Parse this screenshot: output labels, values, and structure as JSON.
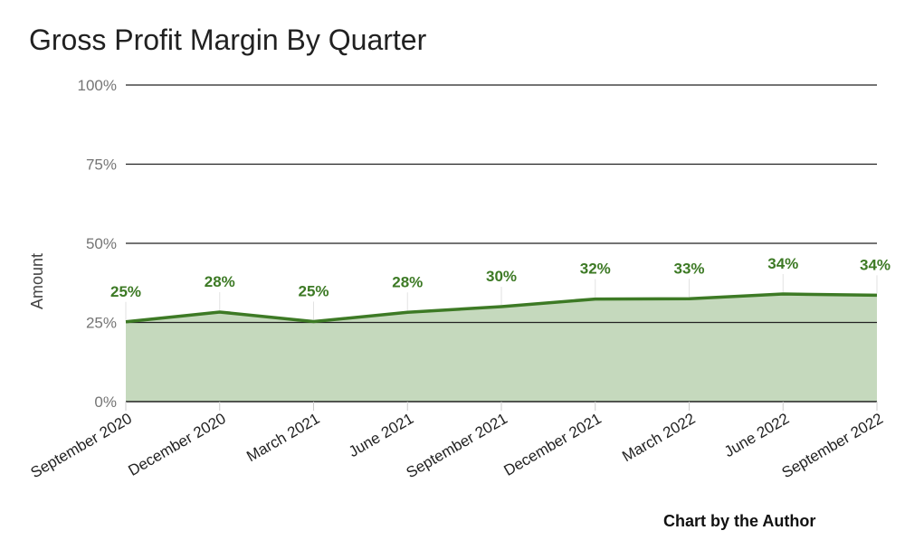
{
  "chart_data": {
    "type": "area",
    "title": "Gross Profit Margin By Quarter",
    "xlabel": "",
    "ylabel": "Amount",
    "ylim": [
      0,
      100
    ],
    "yticks": [
      "0%",
      "25%",
      "50%",
      "75%",
      "100%"
    ],
    "ytick_values": [
      0,
      25,
      50,
      75,
      100
    ],
    "grid": true,
    "categories": [
      "September 2020",
      "December 2020",
      "March 2021",
      "June 2021",
      "September 2021",
      "December 2021",
      "March 2022",
      "June 2022",
      "September 2022"
    ],
    "series": [
      {
        "values": [
          25.2,
          28.3,
          25.3,
          28.2,
          30.0,
          32.4,
          32.5,
          34.0,
          33.6
        ],
        "data_labels": [
          "25%",
          "28%",
          "25%",
          "28%",
          "30%",
          "32%",
          "33%",
          "34%",
          "34%"
        ],
        "line_color": "#3d7a25",
        "fill_color": "#c5d9bd"
      }
    ],
    "annotation": "Chart by the Author"
  }
}
